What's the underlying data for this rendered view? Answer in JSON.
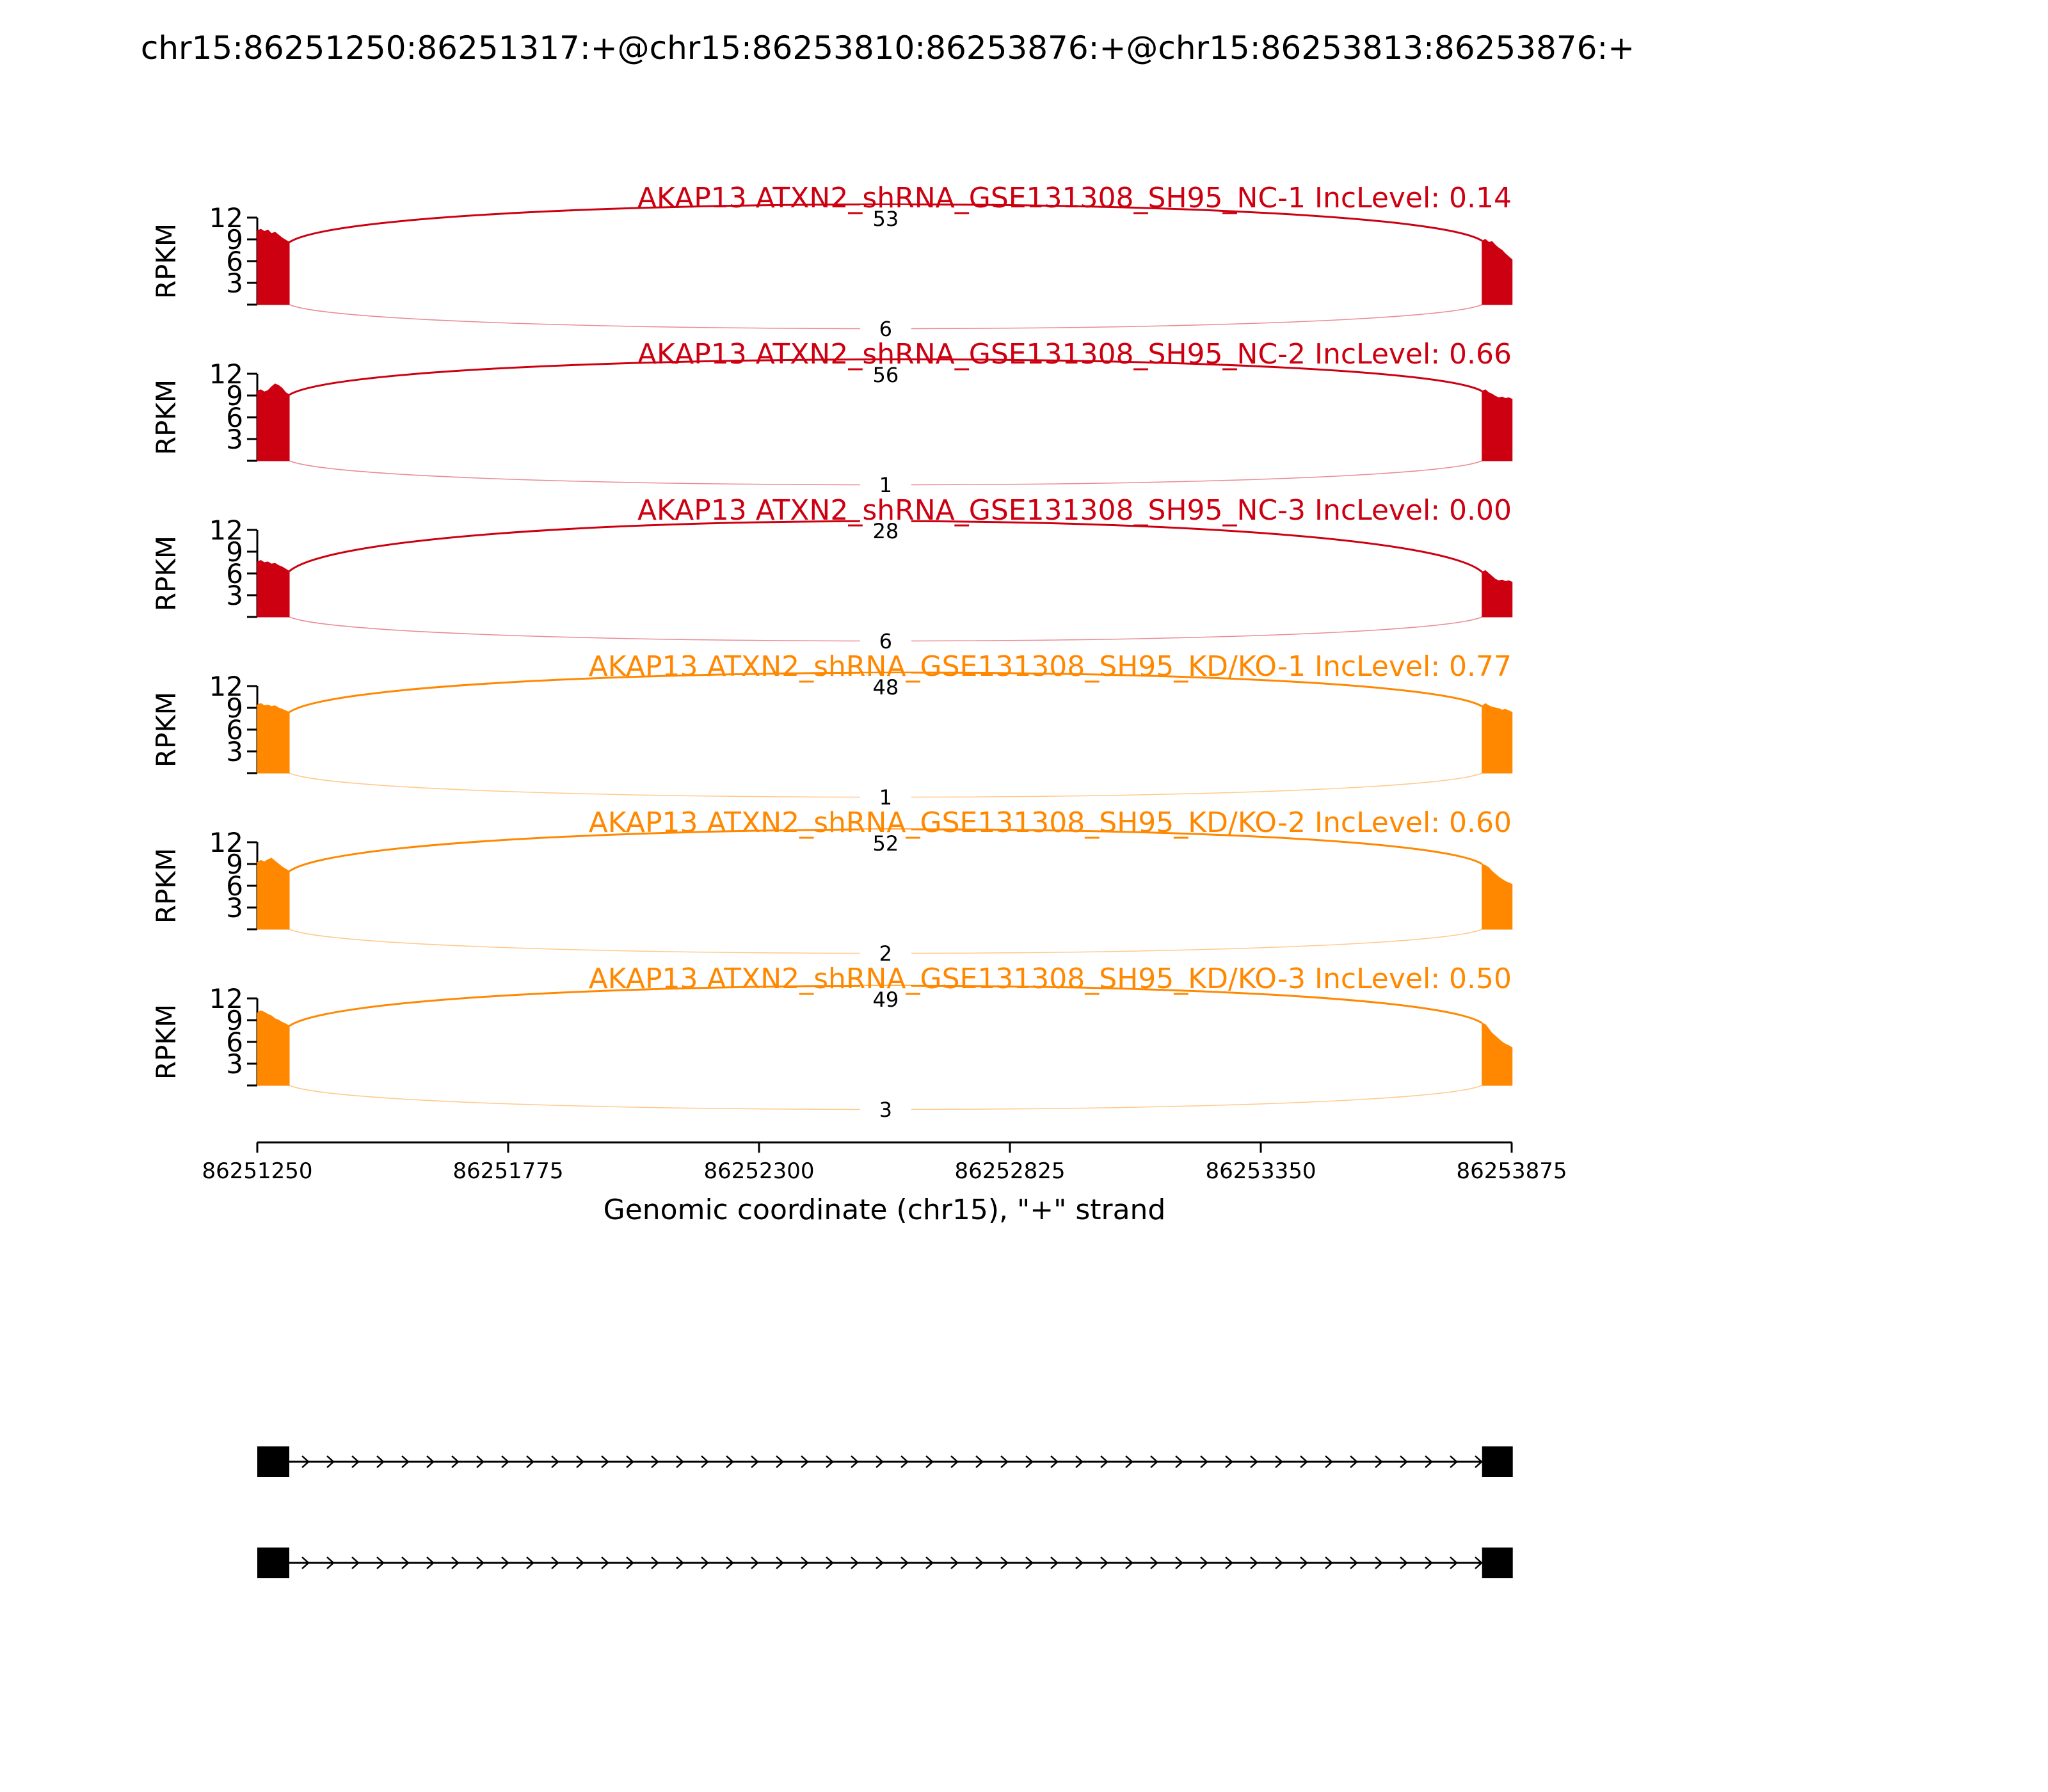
{
  "figure": {
    "title": "chr15:86251250:86251317:+@chr15:86253810:86253876:+@chr15:86253813:86253876:+"
  },
  "chart_data": {
    "type": "area",
    "ylabel": "RPKM",
    "xlabel": "Genomic coordinate (chr15), \"+\" strand",
    "ylim": [
      0,
      12
    ],
    "yticks": [
      "3",
      "6",
      "9",
      "12"
    ],
    "xlim": [
      86251250,
      86253875
    ],
    "xticks": [
      "86251250",
      "86251775",
      "86252300",
      "86252825",
      "86253350",
      "86253875"
    ],
    "exon_left": [
      86251250,
      86251317
    ],
    "exon_right": [
      86253813,
      86253876
    ],
    "series": [
      {
        "name": "AKAP13 ATXN2_shRNA_GSE131308_SH95_NC-1 IncLevel: 0.14",
        "color": "#cc0011",
        "upper_junction": "53",
        "lower_junction": "6",
        "left_exon_profile": [
          10.2,
          10.4,
          10.1,
          10.3,
          9.8,
          10.0,
          9.6,
          9.2,
          8.9,
          8.6
        ],
        "right_exon_profile": [
          8.8,
          9.0,
          8.6,
          8.7,
          8.2,
          7.8,
          7.5,
          7.0,
          6.6,
          6.2
        ]
      },
      {
        "name": "AKAP13 ATXN2_shRNA_GSE131308_SH95_NC-2 IncLevel: 0.66",
        "color": "#cc0011",
        "upper_junction": "56",
        "lower_junction": "1",
        "left_exon_profile": [
          9.6,
          9.8,
          9.5,
          9.7,
          10.2,
          10.6,
          10.4,
          10.0,
          9.4,
          9.1
        ],
        "right_exon_profile": [
          9.6,
          9.8,
          9.4,
          9.2,
          8.9,
          8.7,
          8.8,
          8.6,
          8.7,
          8.5
        ]
      },
      {
        "name": "AKAP13 ATXN2_shRNA_GSE131308_SH95_NC-3 IncLevel: 0.00",
        "color": "#cc0011",
        "upper_junction": "28",
        "lower_junction": "6",
        "left_exon_profile": [
          7.6,
          7.8,
          7.5,
          7.6,
          7.3,
          7.4,
          7.1,
          6.9,
          6.6,
          6.3
        ],
        "right_exon_profile": [
          6.2,
          6.4,
          6.0,
          5.6,
          5.2,
          5.0,
          5.1,
          4.9,
          5.0,
          4.8
        ]
      },
      {
        "name": "AKAP13 ATXN2_shRNA_GSE131308_SH95_KD/KO-1 IncLevel: 0.77",
        "color": "#ff8800",
        "upper_junction": "48",
        "lower_junction": "1",
        "left_exon_profile": [
          9.4,
          9.6,
          9.3,
          9.4,
          9.2,
          9.3,
          9.0,
          8.8,
          8.6,
          8.4
        ],
        "right_exon_profile": [
          9.2,
          9.6,
          9.3,
          9.1,
          9.0,
          8.9,
          8.7,
          8.8,
          8.6,
          8.4
        ]
      },
      {
        "name": "AKAP13 ATXN2_shRNA_GSE131308_SH95_KD/KO-2 IncLevel: 0.60",
        "color": "#ff8800",
        "upper_junction": "52",
        "lower_junction": "2",
        "left_exon_profile": [
          9.2,
          9.5,
          9.3,
          9.6,
          9.8,
          9.4,
          9.0,
          8.6,
          8.3,
          8.0
        ],
        "right_exon_profile": [
          9.0,
          8.8,
          8.5,
          8.0,
          7.6,
          7.2,
          6.9,
          6.6,
          6.4,
          6.2
        ]
      },
      {
        "name": "AKAP13 ATXN2_shRNA_GSE131308_SH95_KD/KO-3 IncLevel: 0.50",
        "color": "#ff8800",
        "upper_junction": "49",
        "lower_junction": "3",
        "left_exon_profile": [
          10.0,
          10.3,
          10.1,
          9.8,
          9.6,
          9.2,
          9.0,
          8.7,
          8.5,
          8.2
        ],
        "right_exon_profile": [
          8.6,
          8.4,
          7.8,
          7.2,
          6.8,
          6.4,
          6.0,
          5.7,
          5.5,
          5.2
        ]
      }
    ],
    "isoforms": [
      {
        "exons": [
          [
            86251250,
            86251317
          ],
          [
            86253813,
            86253876
          ]
        ]
      },
      {
        "exons": [
          [
            86251250,
            86251317
          ],
          [
            86253813,
            86253876
          ]
        ]
      }
    ]
  }
}
